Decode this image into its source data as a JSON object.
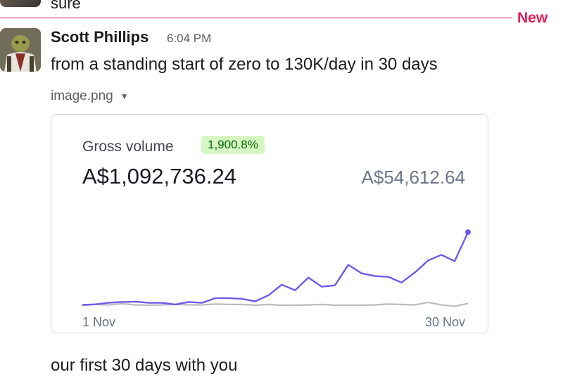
{
  "previous_message": {
    "text": "sure"
  },
  "divider": {
    "label": "New"
  },
  "message": {
    "author": "Scott Phillips",
    "timestamp": "6:04 PM",
    "text": "from a standing start of zero to 130K/day in 30 days",
    "attachment": {
      "filename": "image.png"
    },
    "followup_text": "our first 30 days with you"
  },
  "chart_card": {
    "title": "Gross volume",
    "badge": "1,900.8%",
    "amount": "A$1,092,736.24",
    "comparison_amount": "A$54,612.64"
  },
  "colors": {
    "accent_new": "#e01e5a",
    "series_current": "#6c5ce7",
    "series_previous": "#b8bdc6",
    "badge_bg": "#d7f7c2",
    "badge_text": "#006908"
  },
  "chart_data": {
    "type": "line",
    "x_start_label": "1 Nov",
    "x_end_label": "30 Nov",
    "x": [
      1,
      2,
      3,
      4,
      5,
      6,
      7,
      8,
      9,
      10,
      11,
      12,
      13,
      14,
      15,
      16,
      17,
      18,
      19,
      20,
      21,
      22,
      23,
      24,
      25,
      26,
      27,
      28,
      29,
      30
    ],
    "series": [
      {
        "values": [
          500,
          1200,
          3500,
          4500,
          5000,
          3300,
          3300,
          1000,
          4500,
          3300,
          10000,
          10000,
          9000,
          5500,
          14000,
          29000,
          21000,
          39000,
          26000,
          28000,
          57000,
          45000,
          41000,
          40000,
          32000,
          46000,
          63000,
          71000,
          62000,
          103000
        ],
        "color": "#6c5ce7"
      },
      {
        "values": [
          0,
          1000,
          500,
          2000,
          500,
          0,
          500,
          1000,
          500,
          500,
          1500,
          1000,
          1000,
          0,
          1000,
          0,
          0,
          500,
          1000,
          0,
          0,
          0,
          500,
          1500,
          1000,
          500,
          4000,
          500,
          -1500,
          2500
        ],
        "color": "#b8bdc6"
      }
    ],
    "ylim": [
      -5000,
      110000
    ],
    "grid": false,
    "legend": "none",
    "end_marker": true
  }
}
